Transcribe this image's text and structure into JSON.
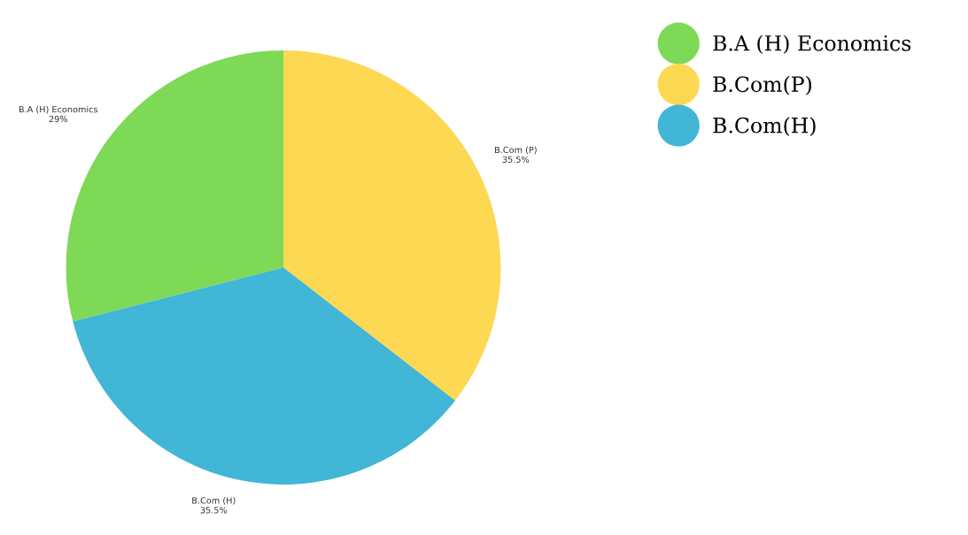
{
  "chart_data": {
    "type": "pie",
    "categories": [
      "B.A (H) Economics",
      "B.Com(P)",
      "B.Com(H)"
    ],
    "values": [
      29,
      35.5,
      35.5
    ],
    "colors": [
      "#7ed957",
      "#fdd853",
      "#41b6d6"
    ],
    "value_labels": [
      "B.A (H) Economics\n29%",
      "B.Com (P)\n35.5%",
      "B.Com (H)\n35.5%"
    ],
    "legend": "right"
  }
}
